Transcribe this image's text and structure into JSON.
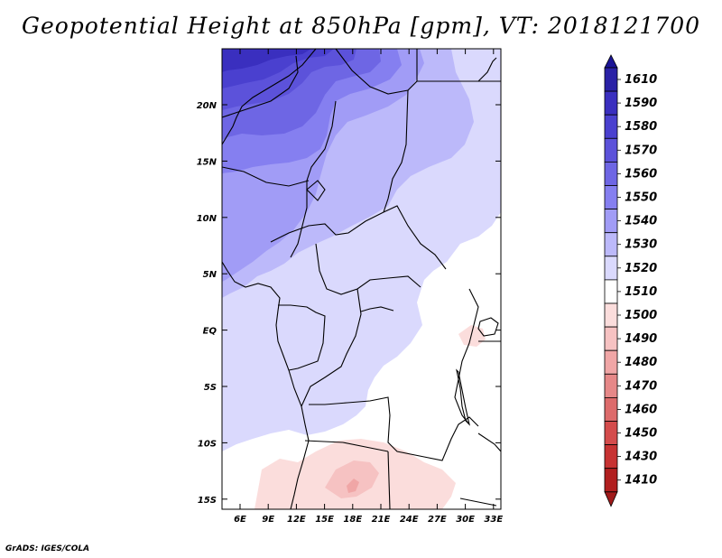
{
  "title": "Geopotential Height at 850hPa [gpm], VT: 2018121700",
  "credit": "GrADS: IGES/COLA",
  "map": {
    "lon_ticks": [
      "6E",
      "9E",
      "12E",
      "15E",
      "18E",
      "21E",
      "24E",
      "27E",
      "30E",
      "33E"
    ],
    "lat_ticks": [
      "20N",
      "15N",
      "10N",
      "5N",
      "EQ",
      "5S",
      "10S",
      "15S"
    ]
  },
  "colorbar": {
    "levels": [
      "1610",
      "1590",
      "1580",
      "1570",
      "1560",
      "1550",
      "1540",
      "1530",
      "1520",
      "1510",
      "1500",
      "1490",
      "1480",
      "1470",
      "1460",
      "1450",
      "1430",
      "1410"
    ],
    "colors": [
      "#2a21a6",
      "#3a2fbf",
      "#4a40cf",
      "#5c52da",
      "#6e66e4",
      "#857ff0",
      "#a19cf6",
      "#bcb9fa",
      "#dad9fd",
      "#ffffff",
      "#fbdddc",
      "#f6c2c2",
      "#f0a6a6",
      "#e68888",
      "#dd6b6b",
      "#d44c4c",
      "#c73333",
      "#b11f1f"
    ],
    "top_arrow_color": "#1c1596",
    "bottom_arrow_color": "#a01a1a"
  }
}
